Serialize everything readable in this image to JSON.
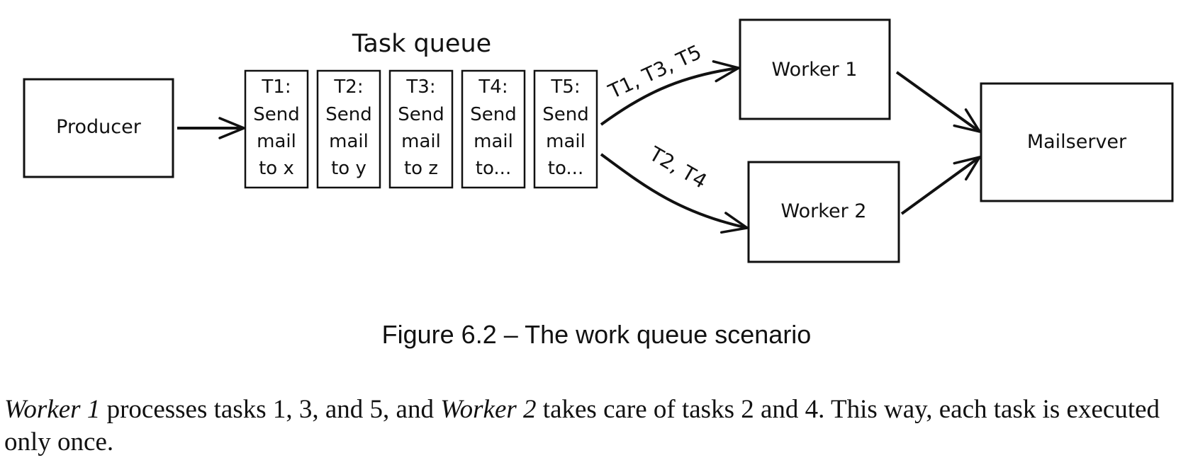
{
  "diagram": {
    "producer": "Producer",
    "queue_title": "Task queue",
    "tasks": [
      [
        "T1:",
        "Send",
        "mail",
        "to x"
      ],
      [
        "T2:",
        "Send",
        "mail",
        "to y"
      ],
      [
        "T3:",
        "Send",
        "mail",
        "to z"
      ],
      [
        "T4:",
        "Send",
        "mail",
        "to..."
      ],
      [
        "T5:",
        "Send",
        "mail",
        "to..."
      ]
    ],
    "worker1": "Worker 1",
    "worker2": "Worker 2",
    "mailserver": "Mailserver",
    "arrow_label_top": "T1, T3, T5",
    "arrow_label_bottom": "T2, T4"
  },
  "caption": "Figure 6.2 – The work queue scenario",
  "body": {
    "worker1": "Worker 1",
    "part1": " processes tasks 1, 3, and 5, and ",
    "worker2": "Worker 2",
    "part2": " takes care of tasks 2 and 4. This way, each task is executed only once."
  }
}
